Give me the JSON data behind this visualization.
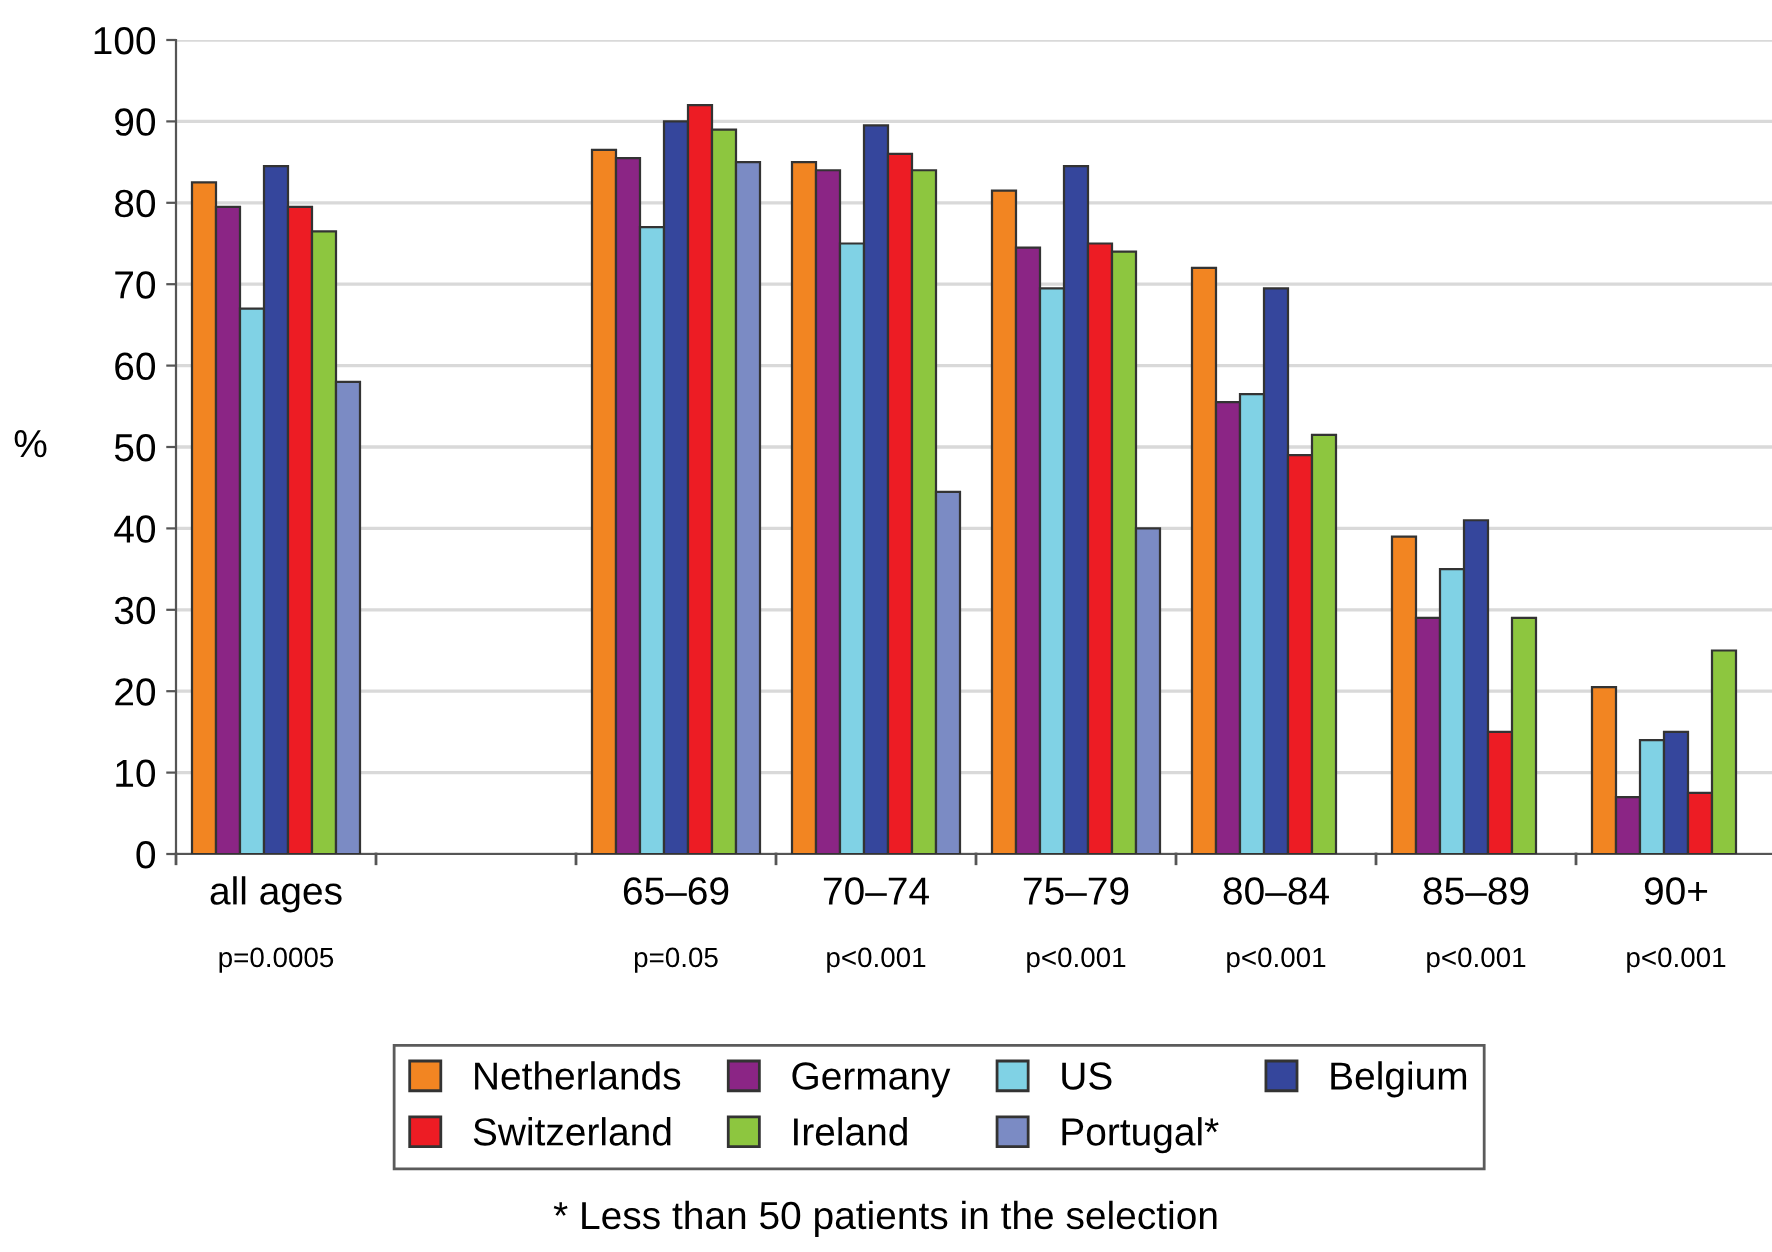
{
  "chart_data": {
    "type": "bar",
    "ylabel": "%",
    "categories": [
      "all ages",
      null,
      "65–69",
      "70–74",
      "75–79",
      "80–84",
      "85–89",
      "90+"
    ],
    "series": [
      {
        "name": "Netherlands",
        "color": "#f28522",
        "values": [
          82.5,
          null,
          86.5,
          85,
          81.5,
          72,
          39,
          20.5
        ]
      },
      {
        "name": "Germany",
        "color": "#8b2585",
        "values": [
          79.5,
          null,
          85.5,
          84,
          74.5,
          55.5,
          29,
          7
        ]
      },
      {
        "name": "US",
        "color": "#80d2e5",
        "values": [
          67,
          null,
          77,
          75,
          69.5,
          56.5,
          35,
          14
        ]
      },
      {
        "name": "Belgium",
        "color": "#35469c",
        "values": [
          84.5,
          null,
          90,
          89.5,
          84.5,
          69.5,
          41,
          15
        ]
      },
      {
        "name": "Switzerland",
        "color": "#ed1c24",
        "values": [
          79.5,
          null,
          92,
          86,
          75,
          49,
          15,
          7.5
        ]
      },
      {
        "name": "Ireland",
        "color": "#8dc63f",
        "values": [
          76.5,
          null,
          89,
          84,
          74,
          51.5,
          29,
          25
        ]
      },
      {
        "name": "Portugal*",
        "color": "#7b8bc4",
        "values": [
          58,
          null,
          85,
          44.5,
          40,
          null,
          null,
          null
        ]
      }
    ],
    "ylim": [
      0,
      100
    ],
    "yticks": [
      0,
      10,
      20,
      30,
      40,
      50,
      60,
      70,
      80,
      90,
      100
    ],
    "grid": "y",
    "legend": "bottom",
    "annotations": [
      "p=0.0005",
      "p=0.05",
      "p<0.001",
      "p<0.001",
      "p<0.001",
      "p<0.001",
      "p<0.001",
      "* Less than 50 patients in the selection"
    ]
  }
}
